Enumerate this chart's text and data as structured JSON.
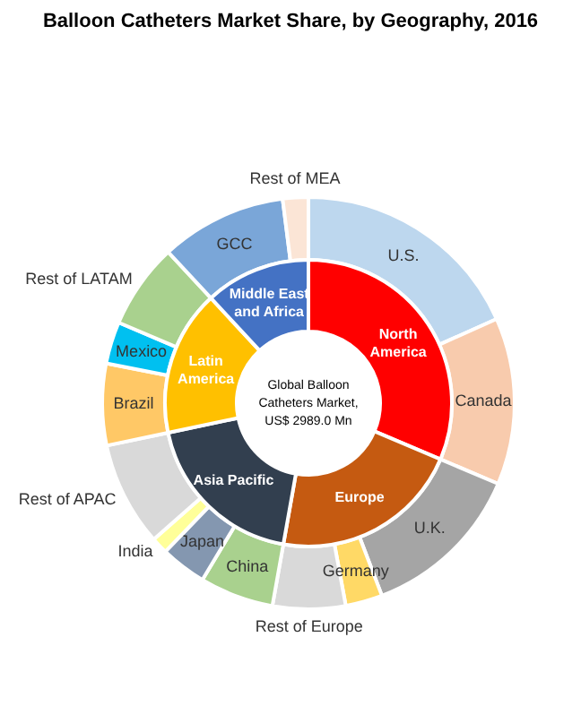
{
  "chart_data": [
    {
      "type": "donut",
      "title": "Balloon Catheters Market Share, by Geography, 2016",
      "annotations": [
        "Global Balloon Catheters Market, US$ 2989.0 Mn"
      ],
      "categories": [
        "North America",
        "Europe",
        "Asia Pacific",
        "Latin America",
        "Middle East and Africa"
      ],
      "values": [
        31.4,
        21.4,
        18.9,
        16.4,
        11.9
      ],
      "colors": [
        "#ff0000",
        "#c55a11",
        "#323f4f",
        "#ffc000",
        "#4472c4"
      ]
    },
    {
      "type": "donut",
      "categories": [
        "U.S.",
        "Canada",
        "U.K.",
        "Germany",
        "Rest of Europe",
        "China",
        "Japan",
        "India",
        "Rest of APAC",
        "Brazil",
        "Mexico",
        "Rest of LATAM",
        "GCC",
        "Rest of MEA"
      ],
      "values": [
        18.3,
        13.1,
        12.8,
        2.9,
        5.7,
        5.8,
        3.6,
        1.3,
        8.2,
        6.4,
        3.3,
        6.7,
        9.9,
        2.0
      ],
      "colors": [
        "#bdd7ee",
        "#f8cbad",
        "#a5a5a5",
        "#ffd966",
        "#d9d9d9",
        "#a9d18e",
        "#8497b0",
        "#ffff99",
        "#d9d9d9",
        "#ffc866",
        "#00c0f0",
        "#a9d18e",
        "#7aa6d8",
        "#fbe5d6"
      ]
    }
  ]
}
